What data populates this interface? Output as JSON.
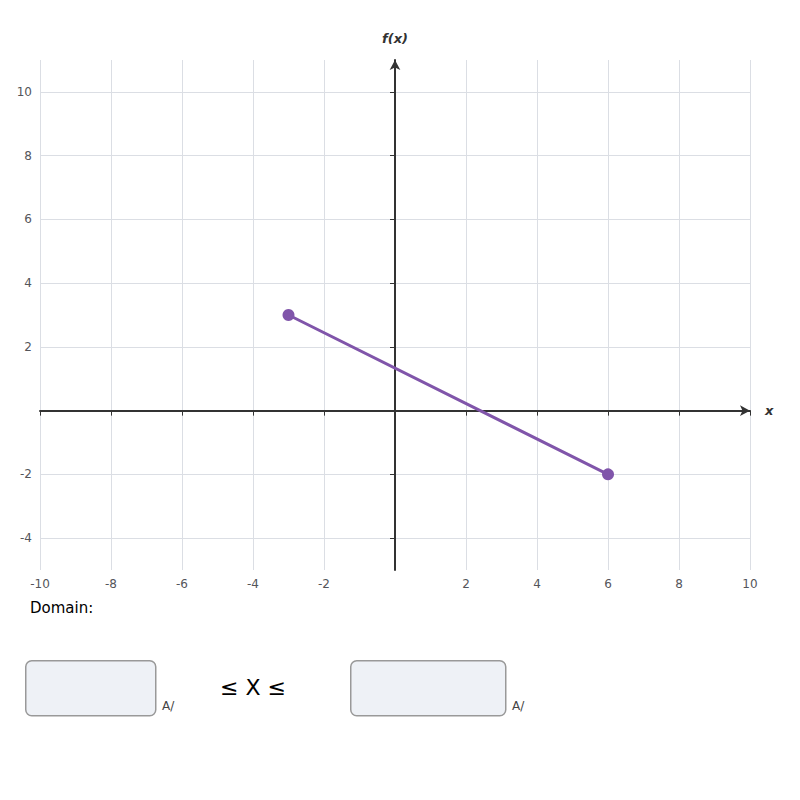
{
  "chart_data": {
    "type": "line",
    "x_label": "x",
    "y_label": "f(x)",
    "x": [
      -3,
      6
    ],
    "values": [
      3,
      -2
    ],
    "color": "#8055AA",
    "marker": "circle",
    "xlim": [
      -10,
      10
    ],
    "ylim": [
      -5,
      11
    ],
    "xticks": [
      -10,
      -8,
      -6,
      -4,
      -2,
      2,
      4,
      6,
      8,
      10
    ],
    "yticks": [
      -4,
      -2,
      2,
      4,
      6,
      8,
      10
    ],
    "grid": true,
    "annotations": [
      "Domain:",
      "A/",
      "≤ X ≤",
      "A/"
    ]
  }
}
